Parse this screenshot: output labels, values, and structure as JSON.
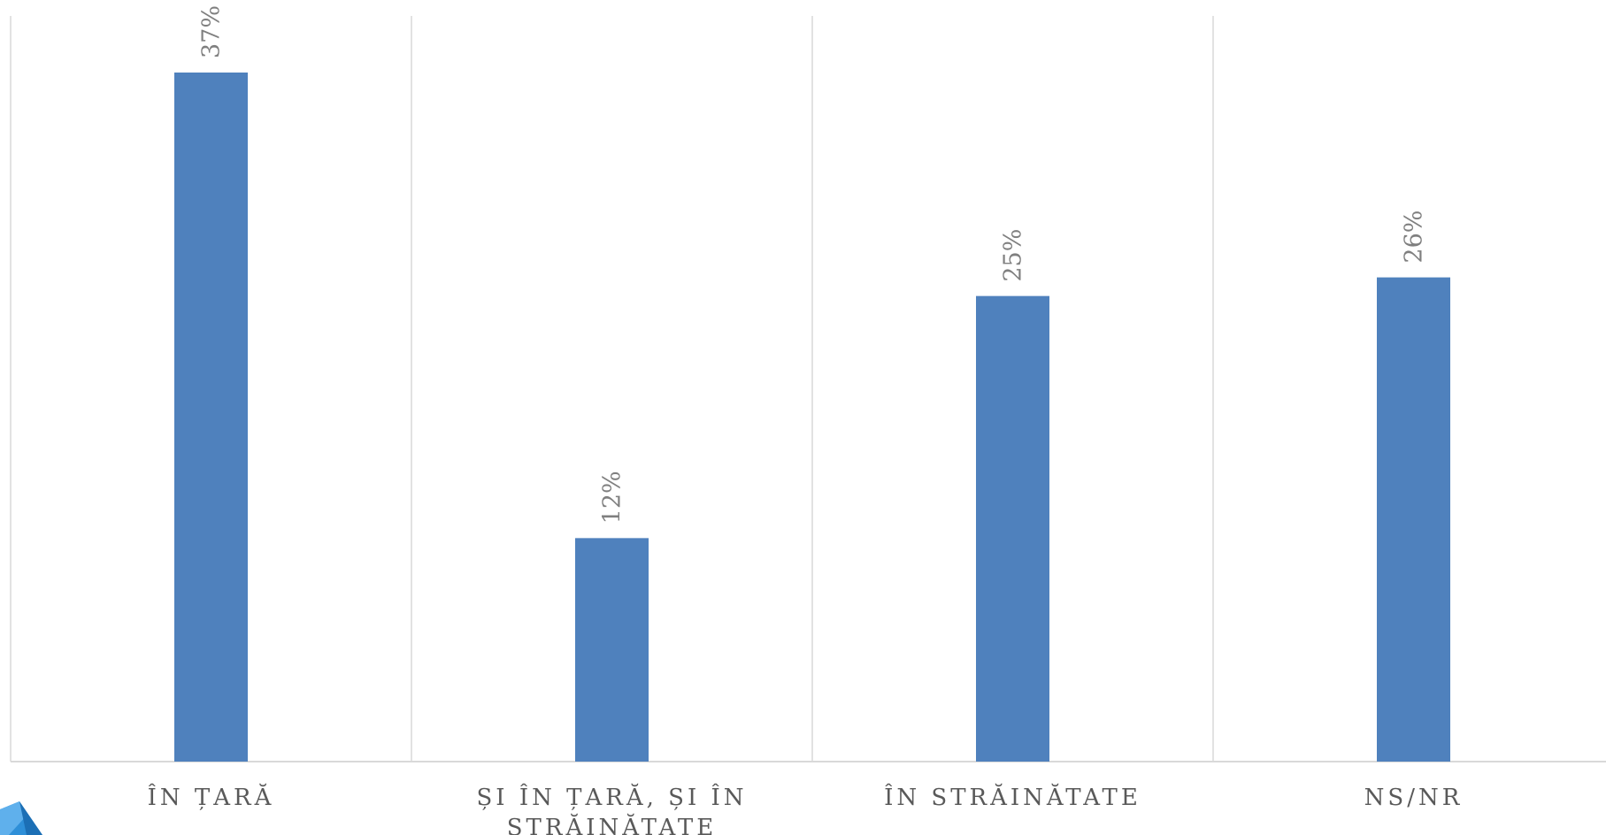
{
  "chart_data": {
    "type": "bar",
    "categories": [
      [
        "ÎN ȚARĂ"
      ],
      [
        "ȘI ÎN ȚARĂ, ȘI ÎN",
        "STRĂINĂTATE"
      ],
      [
        "ÎN STRĂINĂTATE"
      ],
      [
        "NS/NR"
      ]
    ],
    "values": [
      37,
      12,
      25,
      26
    ],
    "value_suffix": "%",
    "ylim": [
      0,
      40
    ],
    "grid": "vertical category separators",
    "legend": "none",
    "colors": {
      "bar": "#4f81bd",
      "grid": "#d9d9d9",
      "data_label": "#7f7f7f",
      "category_label": "#595959",
      "logo": "#2e8fd8"
    }
  },
  "logo": {
    "icon": "triangle-logo-icon"
  }
}
